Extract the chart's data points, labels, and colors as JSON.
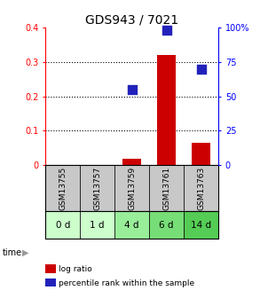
{
  "title": "GDS943 / 7021",
  "samples": [
    "GSM13755",
    "GSM13757",
    "GSM13759",
    "GSM13761",
    "GSM13763"
  ],
  "time_labels": [
    "0 d",
    "1 d",
    "4 d",
    "6 d",
    "14 d"
  ],
  "log_ratio": [
    0.0,
    0.0,
    0.02,
    0.32,
    0.065
  ],
  "percentile_rank_pct": [
    null,
    null,
    55,
    98,
    70
  ],
  "left_ylim": [
    0,
    0.4
  ],
  "right_ylim": [
    0,
    100
  ],
  "left_yticks": [
    0,
    0.1,
    0.2,
    0.3,
    0.4
  ],
  "right_yticks": [
    0,
    25,
    50,
    75,
    100
  ],
  "left_yticklabels": [
    "0",
    "0.1",
    "0.2",
    "0.3",
    "0.4"
  ],
  "right_yticklabels": [
    "0",
    "25",
    "50",
    "75",
    "100%"
  ],
  "bar_color": "#cc0000",
  "dot_color": "#2222bb",
  "sample_bg_color": "#c8c8c8",
  "time_bg_colors": [
    "#ccffcc",
    "#ccffcc",
    "#99ee99",
    "#77dd77",
    "#55cc55"
  ],
  "bar_width": 0.55,
  "dot_size": 45,
  "title_fontsize": 10
}
